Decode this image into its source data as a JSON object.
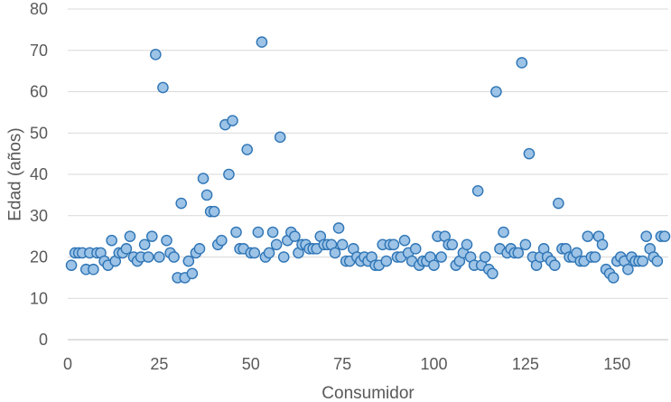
{
  "chart_data": {
    "type": "scatter",
    "title": "",
    "xlabel": "Consumidor",
    "ylabel": "Edad (años)",
    "xlim": [
      0,
      164
    ],
    "ylim": [
      0,
      80
    ],
    "x_ticks": [
      0,
      25,
      50,
      75,
      100,
      125,
      150
    ],
    "y_ticks": [
      0,
      10,
      20,
      30,
      40,
      50,
      60,
      70,
      80
    ],
    "grid": {
      "horizontal": true,
      "vertical": false
    },
    "legend": "none",
    "marker_fill": "#9dc3e6",
    "marker_stroke": "#2e75b6",
    "series": [
      {
        "points": [
          [
            1,
            18
          ],
          [
            2,
            21
          ],
          [
            3,
            21
          ],
          [
            4,
            21
          ],
          [
            5,
            17
          ],
          [
            6,
            21
          ],
          [
            7,
            17
          ],
          [
            8,
            21
          ],
          [
            9,
            21
          ],
          [
            10,
            19
          ],
          [
            11,
            18
          ],
          [
            12,
            24
          ],
          [
            13,
            19
          ],
          [
            14,
            21
          ],
          [
            15,
            21
          ],
          [
            16,
            22
          ],
          [
            17,
            25
          ],
          [
            18,
            20
          ],
          [
            19,
            19
          ],
          [
            20,
            20
          ],
          [
            21,
            23
          ],
          [
            22,
            20
          ],
          [
            23,
            25
          ],
          [
            24,
            69
          ],
          [
            25,
            20
          ],
          [
            26,
            61
          ],
          [
            27,
            24
          ],
          [
            28,
            21
          ],
          [
            29,
            20
          ],
          [
            30,
            15
          ],
          [
            31,
            33
          ],
          [
            32,
            15
          ],
          [
            33,
            19
          ],
          [
            34,
            16
          ],
          [
            35,
            21
          ],
          [
            36,
            22
          ],
          [
            37,
            39
          ],
          [
            38,
            35
          ],
          [
            39,
            31
          ],
          [
            40,
            31
          ],
          [
            41,
            23
          ],
          [
            42,
            24
          ],
          [
            43,
            52
          ],
          [
            44,
            40
          ],
          [
            45,
            53
          ],
          [
            46,
            26
          ],
          [
            47,
            22
          ],
          [
            48,
            22
          ],
          [
            49,
            46
          ],
          [
            50,
            21
          ],
          [
            51,
            21
          ],
          [
            52,
            26
          ],
          [
            53,
            72
          ],
          [
            54,
            20
          ],
          [
            55,
            21
          ],
          [
            56,
            26
          ],
          [
            57,
            23
          ],
          [
            58,
            49
          ],
          [
            59,
            20
          ],
          [
            60,
            24
          ],
          [
            61,
            26
          ],
          [
            62,
            25
          ],
          [
            63,
            21
          ],
          [
            64,
            23
          ],
          [
            65,
            23
          ],
          [
            66,
            22
          ],
          [
            67,
            22
          ],
          [
            68,
            22
          ],
          [
            69,
            25
          ],
          [
            70,
            23
          ],
          [
            71,
            23
          ],
          [
            72,
            23
          ],
          [
            73,
            21
          ],
          [
            74,
            27
          ],
          [
            75,
            23
          ],
          [
            76,
            19
          ],
          [
            77,
            19
          ],
          [
            78,
            22
          ],
          [
            79,
            20
          ],
          [
            80,
            19
          ],
          [
            81,
            20
          ],
          [
            82,
            19
          ],
          [
            83,
            20
          ],
          [
            84,
            18
          ],
          [
            85,
            18
          ],
          [
            86,
            23
          ],
          [
            87,
            19
          ],
          [
            88,
            23
          ],
          [
            89,
            23
          ],
          [
            90,
            20
          ],
          [
            91,
            20
          ],
          [
            92,
            24
          ],
          [
            93,
            21
          ],
          [
            94,
            19
          ],
          [
            95,
            22
          ],
          [
            96,
            18
          ],
          [
            97,
            19
          ],
          [
            98,
            19
          ],
          [
            99,
            20
          ],
          [
            100,
            18
          ],
          [
            101,
            25
          ],
          [
            102,
            20
          ],
          [
            103,
            25
          ],
          [
            104,
            23
          ],
          [
            105,
            23
          ],
          [
            106,
            18
          ],
          [
            107,
            19
          ],
          [
            108,
            21
          ],
          [
            109,
            23
          ],
          [
            110,
            20
          ],
          [
            111,
            18
          ],
          [
            112,
            36
          ],
          [
            113,
            18
          ],
          [
            114,
            20
          ],
          [
            115,
            17
          ],
          [
            116,
            16
          ],
          [
            117,
            60
          ],
          [
            118,
            22
          ],
          [
            119,
            26
          ],
          [
            120,
            21
          ],
          [
            121,
            22
          ],
          [
            122,
            21
          ],
          [
            123,
            21
          ],
          [
            124,
            67
          ],
          [
            125,
            23
          ],
          [
            126,
            45
          ],
          [
            127,
            20
          ],
          [
            128,
            18
          ],
          [
            129,
            20
          ],
          [
            130,
            22
          ],
          [
            131,
            20
          ],
          [
            132,
            19
          ],
          [
            133,
            18
          ],
          [
            134,
            33
          ],
          [
            135,
            22
          ],
          [
            136,
            22
          ],
          [
            137,
            20
          ],
          [
            138,
            20
          ],
          [
            139,
            21
          ],
          [
            140,
            19
          ],
          [
            141,
            19
          ],
          [
            142,
            25
          ],
          [
            143,
            20
          ],
          [
            144,
            20
          ],
          [
            145,
            25
          ],
          [
            146,
            23
          ],
          [
            147,
            17
          ],
          [
            148,
            16
          ],
          [
            149,
            15
          ],
          [
            150,
            19
          ],
          [
            151,
            20
          ],
          [
            152,
            19
          ],
          [
            153,
            17
          ],
          [
            154,
            20
          ],
          [
            155,
            19
          ],
          [
            156,
            19
          ],
          [
            157,
            19
          ],
          [
            158,
            25
          ],
          [
            159,
            22
          ],
          [
            160,
            20
          ],
          [
            161,
            19
          ],
          [
            162,
            25
          ],
          [
            163,
            25
          ]
        ]
      }
    ]
  }
}
